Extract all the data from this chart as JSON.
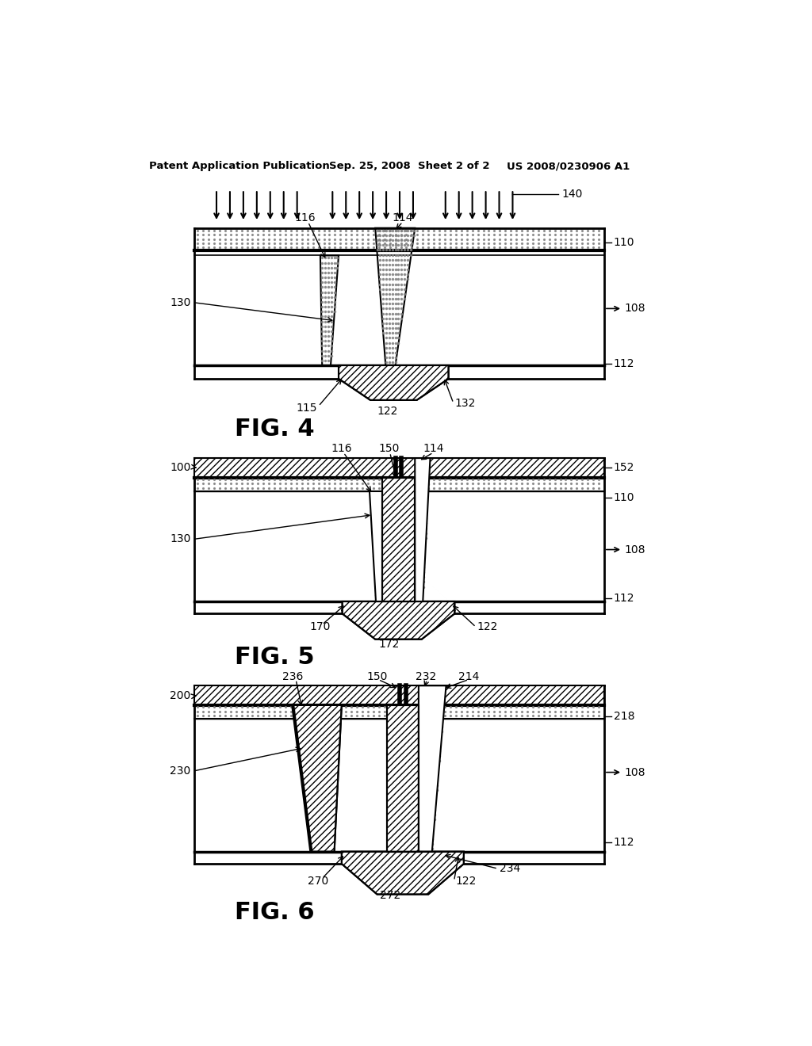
{
  "header_left": "Patent Application Publication",
  "header_center": "Sep. 25, 2008  Sheet 2 of 2",
  "header_right": "US 2008/0230906 A1",
  "fig4_label": "FIG. 4",
  "fig5_label": "FIG. 5",
  "fig6_label": "FIG. 6",
  "background_color": "#ffffff",
  "line_color": "#000000"
}
